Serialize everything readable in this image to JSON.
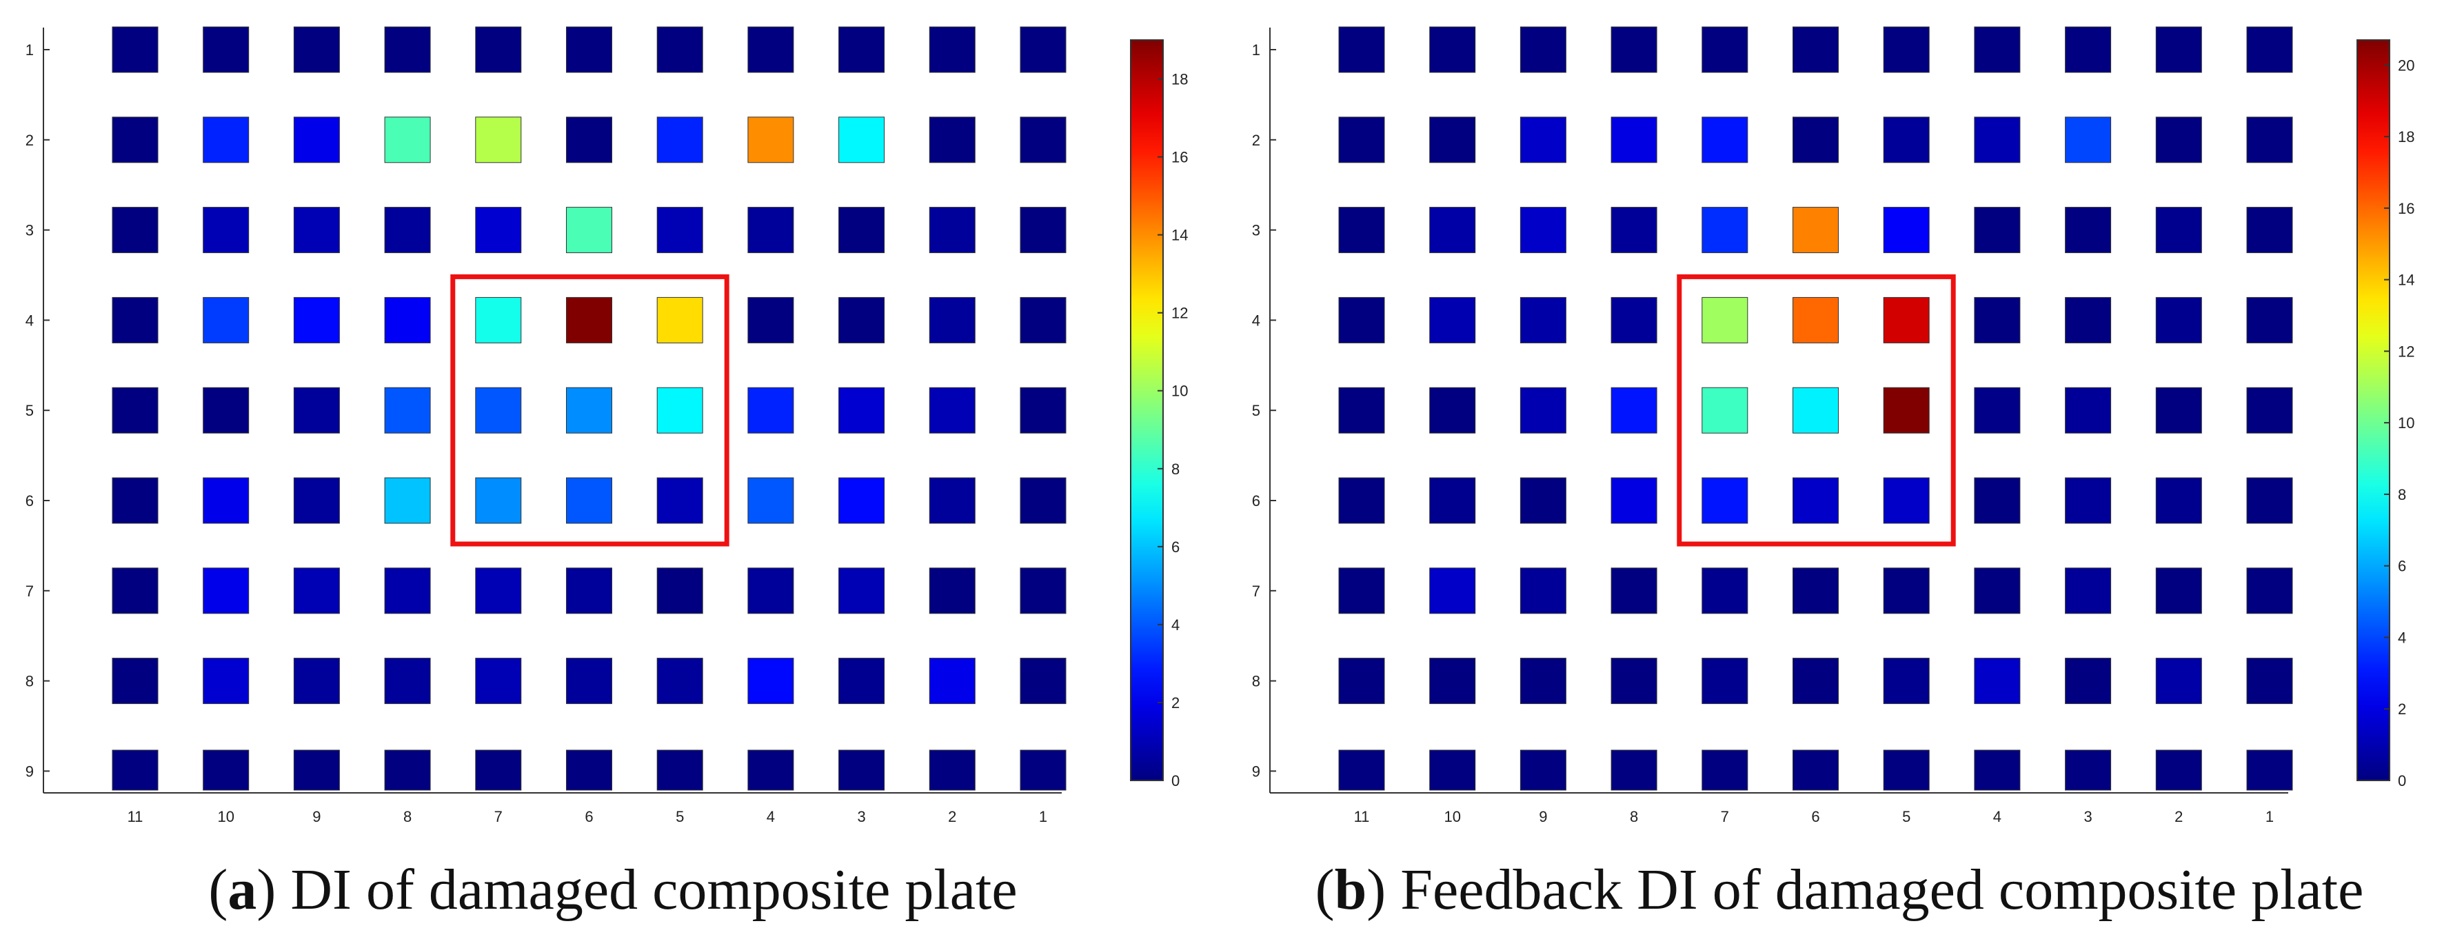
{
  "chart_data": [
    {
      "type": "heatmap",
      "caption_letter": "a",
      "caption_text": "DI of damaged composite plate",
      "x_tick_labels": [
        "11",
        "10",
        "9",
        "8",
        "7",
        "6",
        "5",
        "4",
        "3",
        "2",
        "1"
      ],
      "y_tick_labels": [
        "1",
        "2",
        "3",
        "4",
        "5",
        "6",
        "7",
        "8",
        "9"
      ],
      "colorbar": {
        "min": 0,
        "max": 19,
        "ticks": [
          0,
          2,
          4,
          6,
          8,
          10,
          12,
          14,
          16,
          18
        ]
      },
      "values": [
        [
          0,
          0,
          0,
          0,
          0,
          0,
          0,
          0,
          0,
          0,
          0
        ],
        [
          0,
          3,
          2,
          8.5,
          10.5,
          0,
          3,
          14,
          7,
          0,
          0
        ],
        [
          0,
          1,
          1,
          0.5,
          1.5,
          8.5,
          1,
          0.5,
          0,
          0.5,
          0
        ],
        [
          0,
          3.5,
          2.5,
          2.2,
          7.5,
          19,
          12.5,
          0,
          0,
          0.5,
          0
        ],
        [
          0,
          0,
          0.5,
          4,
          4,
          5,
          7,
          3,
          1.5,
          1,
          0
        ],
        [
          0,
          2,
          0.5,
          6,
          5,
          4,
          1,
          4,
          2.5,
          0.5,
          0
        ],
        [
          0,
          2,
          1,
          0.8,
          1,
          0.5,
          0,
          0.5,
          1,
          0,
          0
        ],
        [
          0,
          1.5,
          0.5,
          0.5,
          1,
          0.5,
          0.5,
          2.5,
          0.3,
          2,
          0
        ],
        [
          0,
          0,
          0,
          0,
          0,
          0,
          0,
          0,
          0,
          0,
          0
        ]
      ],
      "highlight_box": {
        "x_labels": [
          "7",
          "5"
        ],
        "y_labels": [
          "4",
          "6"
        ]
      }
    },
    {
      "type": "heatmap",
      "caption_letter": "b",
      "caption_text": "Feedback DI of damaged composite plate",
      "x_tick_labels": [
        "11",
        "10",
        "9",
        "8",
        "7",
        "6",
        "5",
        "4",
        "3",
        "2",
        "1"
      ],
      "y_tick_labels": [
        "1",
        "2",
        "3",
        "4",
        "5",
        "6",
        "7",
        "8",
        "9"
      ],
      "colorbar": {
        "min": 0,
        "max": 20.7,
        "ticks": [
          0,
          2,
          4,
          6,
          8,
          10,
          12,
          14,
          16,
          18,
          20
        ]
      },
      "values": [
        [
          0,
          0,
          0,
          0,
          0,
          0,
          0,
          0,
          0,
          0,
          0
        ],
        [
          0,
          0,
          1.5,
          2,
          3,
          0,
          0.5,
          1,
          4,
          0,
          0
        ],
        [
          0,
          0.8,
          1.5,
          0.5,
          3.5,
          15.5,
          2.5,
          0,
          0,
          0.3,
          0
        ],
        [
          0,
          1,
          0.8,
          0.5,
          11,
          16,
          19,
          0,
          0,
          0.3,
          0
        ],
        [
          0,
          0,
          1,
          3,
          9,
          7.5,
          20.7,
          0.2,
          0.5,
          0,
          0
        ],
        [
          0,
          0.3,
          0,
          2,
          3,
          1.5,
          1.5,
          0,
          0.5,
          0.3,
          0
        ],
        [
          0,
          1.5,
          0.5,
          0,
          0.3,
          0,
          0,
          0,
          0.5,
          0,
          0
        ],
        [
          0,
          0,
          0,
          0,
          0.3,
          0,
          0.3,
          1.5,
          0,
          0.8,
          0
        ],
        [
          0,
          0,
          0,
          0,
          0,
          0,
          0,
          0,
          0,
          0,
          0
        ]
      ],
      "highlight_box": {
        "x_labels": [
          "7",
          "5"
        ],
        "y_labels": [
          "4",
          "6"
        ]
      }
    }
  ]
}
